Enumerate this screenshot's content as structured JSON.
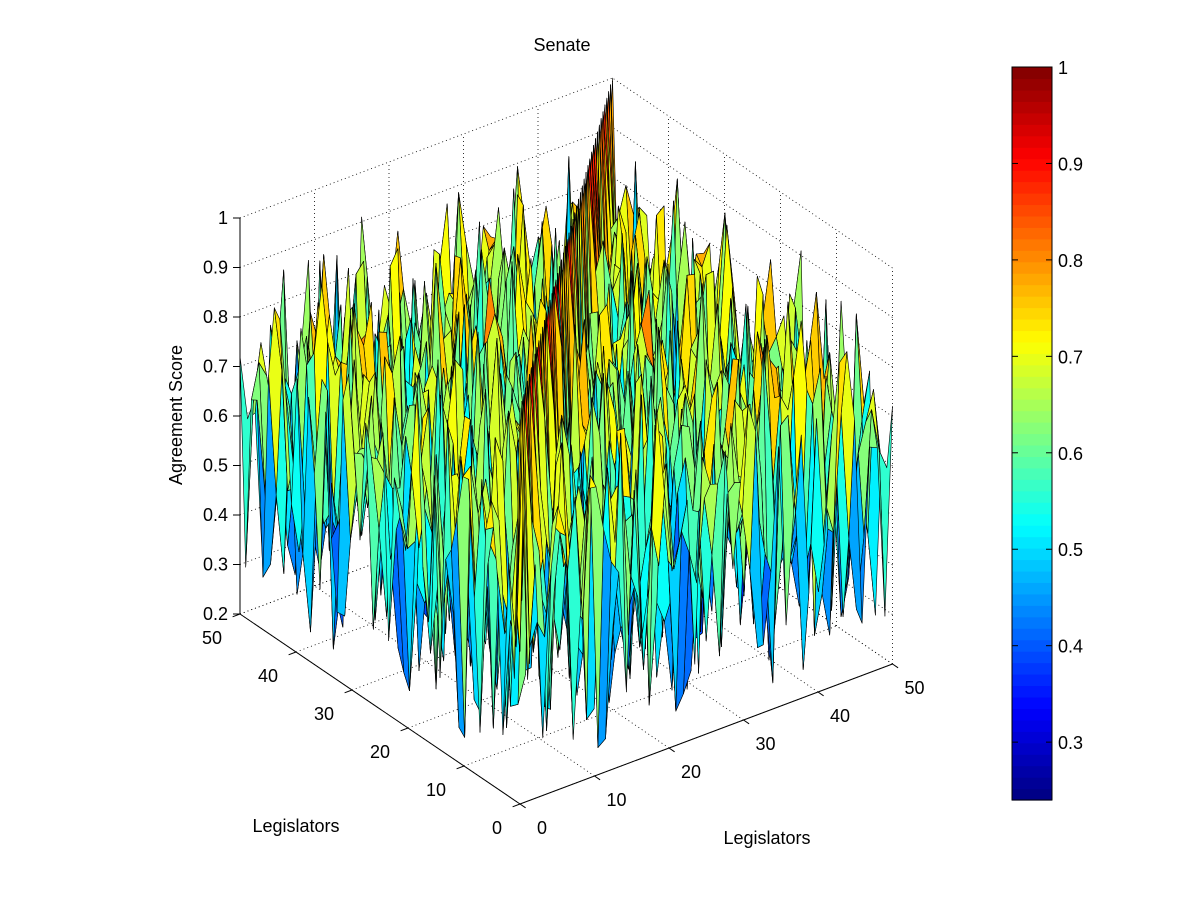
{
  "chart_data": {
    "type": "surface",
    "title": "Senate",
    "xlabel": "Legislators",
    "ylabel": "Legislators",
    "zlabel": "Agreement Score",
    "grid": true,
    "view": "3d-oblique",
    "shading": "faceted",
    "colormap": "jet",
    "x_range": [
      0,
      50
    ],
    "y_range": [
      0,
      50
    ],
    "z_range": [
      0.2,
      1
    ],
    "x_ticks": [
      0,
      10,
      20,
      30,
      40,
      50
    ],
    "y_ticks": [
      0,
      10,
      20,
      30,
      40,
      50
    ],
    "z_ticks": [
      0.2,
      0.3,
      0.4,
      0.5,
      0.6,
      0.7,
      0.8,
      0.9,
      1
    ],
    "x_tick_labels": [
      "0",
      "10",
      "20",
      "30",
      "40",
      "50"
    ],
    "y_tick_labels": [
      "0",
      "10",
      "20",
      "30",
      "40",
      "50"
    ],
    "z_tick_labels": [
      "0.2",
      "0.3",
      "0.4",
      "0.5",
      "0.6",
      "0.7",
      "0.8",
      "0.9",
      "1"
    ],
    "legislator_count": 50,
    "diagonal_value": 1,
    "off_diagonal_value_range": [
      0.24,
      0.92
    ],
    "off_diagonal_typical_mean": 0.62,
    "colorbar": {
      "range": [
        0.24,
        1
      ],
      "ticks": [
        0.3,
        0.4,
        0.5,
        0.6,
        0.7,
        0.8,
        0.9,
        1
      ],
      "tick_labels": [
        "0.3",
        "0.4",
        "0.5",
        "0.6",
        "0.7",
        "0.8",
        "0.9",
        "1"
      ]
    }
  }
}
